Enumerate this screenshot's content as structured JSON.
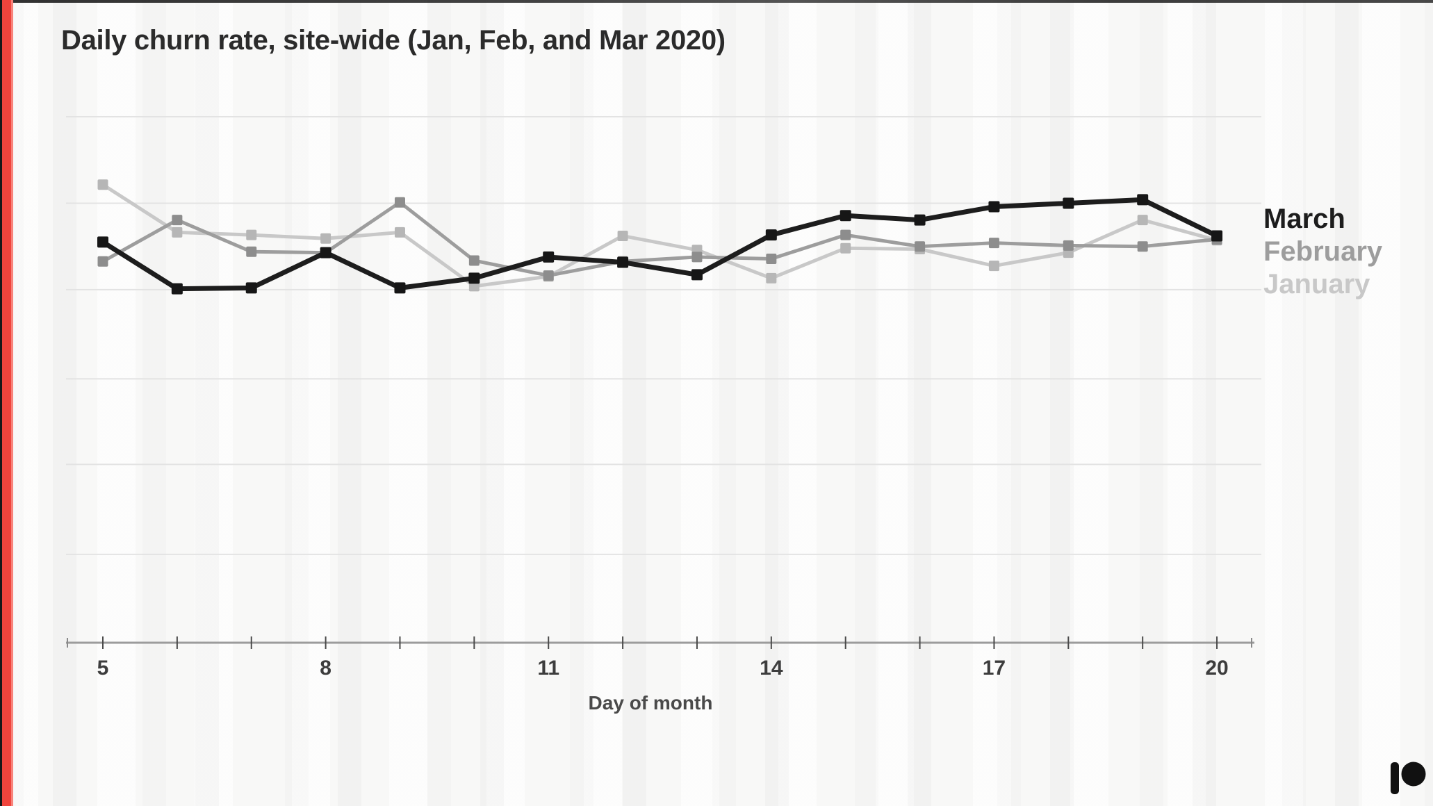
{
  "slide": {
    "accent_color": "#f0443c",
    "top_line_color": "#1c1c1c",
    "background_color": "#fbfbfa"
  },
  "chart_data": {
    "type": "line",
    "title": "Daily churn rate, site-wide (Jan, Feb, and Mar 2020)",
    "xlabel": "Day of month",
    "ylabel": "",
    "x": [
      5,
      6,
      7,
      8,
      9,
      10,
      11,
      12,
      13,
      14,
      15,
      16,
      17,
      18,
      19,
      20
    ],
    "x_ticks_labeled": [
      5,
      8,
      11,
      14,
      17,
      20
    ],
    "xlim": [
      4.5,
      20.5
    ],
    "grid": "horizontal",
    "legend_position": "right-of-line-ends",
    "y_axis": {
      "labeled": false,
      "note": "no y tick labels shown; values are in relative units where 1 unit = one gridline interval above the x-axis baseline",
      "gridline_units": [
        1.04,
        2.06,
        3.03,
        4.04,
        5.02,
        6.0
      ],
      "ylim": [
        0,
        6.6
      ]
    },
    "series": [
      {
        "name": "March",
        "color": "#1d1d1d",
        "marker_color": "#161616",
        "line_width": 7,
        "marker_size": 16,
        "values": [
          4.58,
          4.05,
          4.06,
          4.46,
          4.06,
          4.17,
          4.41,
          4.35,
          4.21,
          4.66,
          4.88,
          4.83,
          4.98,
          5.02,
          5.06,
          4.65
        ]
      },
      {
        "name": "February",
        "color": "#9d9d9d",
        "marker_color": "#8d8d8d",
        "line_width": 5,
        "marker_size": 15,
        "values": [
          4.36,
          4.83,
          4.47,
          4.46,
          5.03,
          4.37,
          4.2,
          4.36,
          4.41,
          4.39,
          4.66,
          4.53,
          4.57,
          4.54,
          4.53,
          4.61
        ]
      },
      {
        "name": "January",
        "color": "#c8c8c8",
        "marker_color": "#b6b6b6",
        "line_width": 5,
        "marker_size": 15,
        "values": [
          5.23,
          4.69,
          4.66,
          4.62,
          4.69,
          4.08,
          4.19,
          4.65,
          4.49,
          4.17,
          4.51,
          4.5,
          4.31,
          4.46,
          4.83,
          4.6
        ]
      }
    ]
  },
  "axis_style": {
    "tick_label_color": "#3d3d3d",
    "axis_line_color": "#9c9c9c",
    "tick_color": "#4a4a4a",
    "gridline_color": "#e3e3e3",
    "xlabel_color": "#4a4a4a"
  },
  "branding": {
    "logo_name": "patreon-logo",
    "logo_color": "#111111"
  }
}
